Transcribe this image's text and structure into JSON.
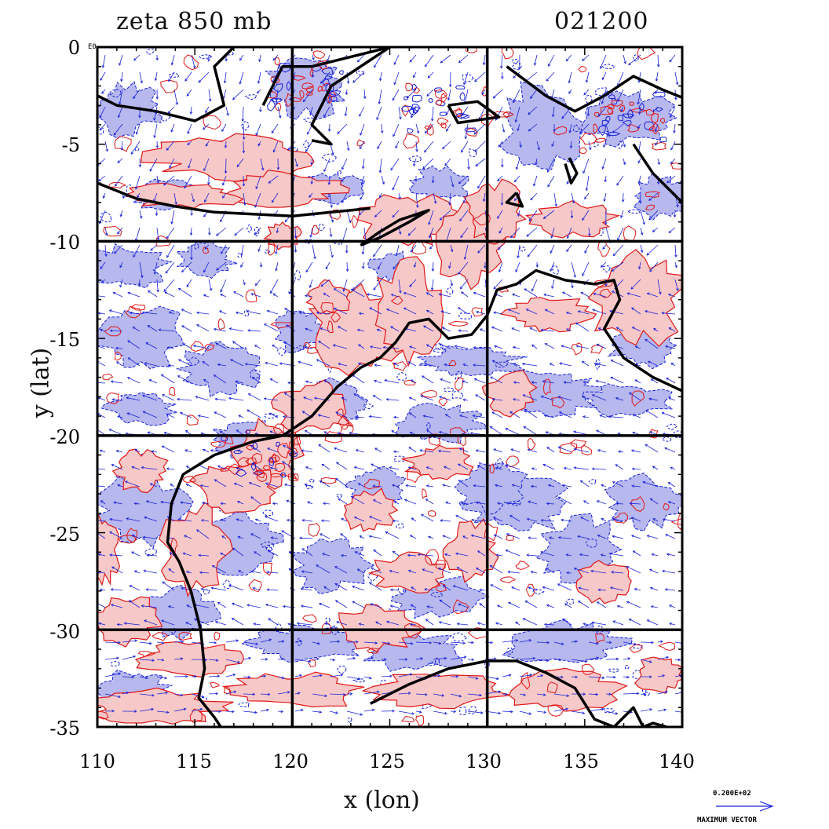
{
  "title_left": "zeta 850 mb",
  "title_right": "021200",
  "x_axis": {
    "label": "x (lon)",
    "ticks": [
      "110",
      "115",
      "120",
      "125",
      "130",
      "135",
      "140"
    ],
    "range": [
      110,
      140
    ]
  },
  "y_axis": {
    "label": "y (lat)",
    "ticks": [
      "0",
      "-5",
      "-10",
      "-15",
      "-20",
      "-25",
      "-30",
      "-35"
    ],
    "range": [
      -35,
      0
    ]
  },
  "corner_exponent": "E0",
  "vector_legend": {
    "value": "0.200E+02",
    "label": "MAXIMUM VECTOR"
  },
  "colors": {
    "positive_fill": "#f7c8c8",
    "positive_contour": "#e01818",
    "negative_fill": "#b6b8ee",
    "negative_contour": "#1a22d8",
    "coastline": "#000000",
    "grid": "#000000",
    "vector": "#1a22d8"
  },
  "gridlines_lon": [
    120,
    130
  ],
  "gridlines_lat": [
    -10,
    -20,
    -30
  ]
}
